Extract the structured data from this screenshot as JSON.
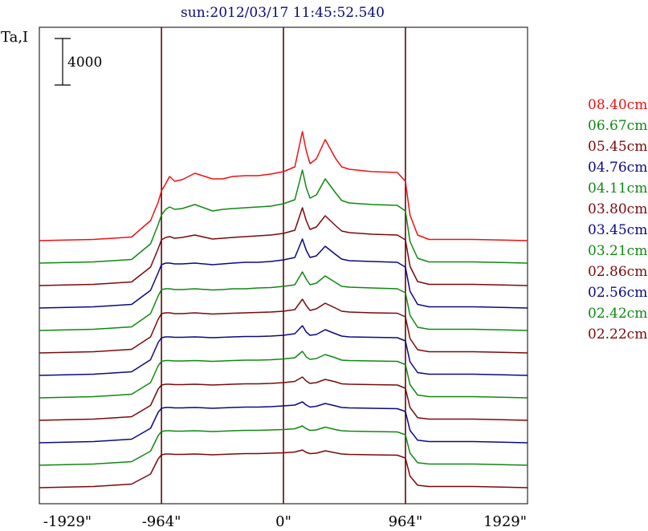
{
  "chart_data": {
    "type": "line",
    "title": "sun:2012/03/17 11:45:52.540",
    "ylabel": "Ta,I",
    "scale_bar_label": "4000",
    "scale_bar_value": 4000,
    "xlim": [
      -1929,
      1929
    ],
    "x_ticks": [
      -1929,
      -964,
      0,
      964,
      1929
    ],
    "x_tick_labels": [
      "-1929\"",
      "-964\"",
      "0\"",
      "964\"",
      "1929\""
    ],
    "vertical_lines_at": [
      -964,
      0,
      964
    ],
    "stacked_offset": 2800,
    "colors": {
      "red": "#ee1111",
      "green": "#118811",
      "darkred": "#7a0a0a",
      "navy": "#0a0a80"
    },
    "profile_x": [
      -1929,
      -1500,
      -1200,
      -1050,
      -990,
      -964,
      -930,
      -900,
      -860,
      -800,
      -700,
      -560,
      -480,
      -400,
      -300,
      -200,
      -100,
      0,
      90,
      150,
      180,
      210,
      260,
      330,
      410,
      460,
      520,
      700,
      900,
      964,
      1000,
      1060,
      1150,
      1500,
      1929
    ],
    "series": [
      {
        "label": "08.40cm",
        "color": "#ee1111",
        "values": [
          0,
          150,
          450,
          2500,
          4800,
          6200,
          7100,
          8000,
          7400,
          7600,
          8400,
          7700,
          7700,
          8000,
          8100,
          8100,
          8300,
          8600,
          9200,
          13600,
          11200,
          9600,
          10200,
          12600,
          10300,
          9200,
          8900,
          8600,
          8500,
          7400,
          3200,
          700,
          150,
          150,
          0
        ]
      },
      {
        "label": "06.67cm",
        "color": "#118811",
        "values": [
          0,
          150,
          450,
          2400,
          4800,
          6000,
          6700,
          7000,
          6700,
          6800,
          7300,
          6500,
          6700,
          6800,
          6900,
          7000,
          7100,
          7400,
          7900,
          11600,
          9400,
          8100,
          8500,
          10500,
          8800,
          7800,
          7500,
          7300,
          7200,
          6500,
          2700,
          600,
          150,
          150,
          0
        ]
      },
      {
        "label": "05.45cm",
        "color": "#7a0a0a",
        "values": [
          0,
          150,
          450,
          2300,
          4600,
          5700,
          6000,
          6100,
          5900,
          6000,
          6300,
          5800,
          5900,
          6000,
          6100,
          6200,
          6300,
          6500,
          6900,
          9700,
          8100,
          7000,
          7300,
          8700,
          7500,
          6800,
          6600,
          6400,
          6300,
          5700,
          2400,
          500,
          150,
          150,
          0
        ]
      },
      {
        "label": "04.76cm",
        "color": "#0a0a80",
        "values": [
          0,
          150,
          450,
          2200,
          4400,
          5400,
          5600,
          5600,
          5500,
          5500,
          5600,
          5400,
          5500,
          5600,
          5700,
          5700,
          5800,
          6000,
          6300,
          8600,
          7200,
          6300,
          6500,
          7700,
          6700,
          6100,
          5900,
          5800,
          5700,
          5100,
          2100,
          450,
          150,
          150,
          0
        ]
      },
      {
        "label": "04.11cm",
        "color": "#118811",
        "values": [
          0,
          150,
          450,
          2100,
          4300,
          5100,
          5200,
          5200,
          5100,
          5100,
          5200,
          5050,
          5100,
          5200,
          5200,
          5300,
          5350,
          5500,
          5700,
          7300,
          6400,
          5700,
          5900,
          6800,
          6000,
          5500,
          5400,
          5300,
          5200,
          4700,
          1900,
          400,
          150,
          150,
          0
        ]
      },
      {
        "label": "03.80cm",
        "color": "#7a0a0a",
        "values": [
          0,
          150,
          450,
          2000,
          4200,
          4900,
          5000,
          5000,
          4900,
          4900,
          5000,
          4850,
          4900,
          4950,
          5000,
          5050,
          5100,
          5200,
          5400,
          6700,
          5900,
          5300,
          5500,
          6200,
          5600,
          5200,
          5100,
          5000,
          4950,
          4500,
          1800,
          400,
          150,
          150,
          0
        ]
      },
      {
        "label": "03.45cm",
        "color": "#0a0a80",
        "values": [
          0,
          150,
          450,
          1950,
          4100,
          4700,
          4800,
          4800,
          4750,
          4750,
          4800,
          4700,
          4750,
          4800,
          4850,
          4850,
          4900,
          5000,
          5200,
          6200,
          5400,
          5000,
          5100,
          5700,
          5200,
          4900,
          4800,
          4750,
          4700,
          4300,
          1700,
          350,
          150,
          150,
          0
        ]
      },
      {
        "label": "03.21cm",
        "color": "#118811",
        "values": [
          0,
          150,
          450,
          1900,
          4000,
          4550,
          4650,
          4650,
          4600,
          4600,
          4650,
          4550,
          4600,
          4650,
          4700,
          4700,
          4750,
          4850,
          5000,
          5800,
          5100,
          4800,
          4900,
          5400,
          5000,
          4700,
          4650,
          4600,
          4550,
          4150,
          1650,
          350,
          150,
          150,
          0
        ]
      },
      {
        "label": "02.86cm",
        "color": "#7a0a0a",
        "values": [
          0,
          150,
          450,
          1850,
          3900,
          4400,
          4500,
          4500,
          4450,
          4450,
          4500,
          4400,
          4450,
          4500,
          4550,
          4550,
          4600,
          4700,
          4850,
          5400,
          4900,
          4600,
          4700,
          5100,
          4800,
          4550,
          4500,
          4450,
          4400,
          4000,
          1600,
          330,
          150,
          150,
          0
        ]
      },
      {
        "label": "02.56cm",
        "color": "#0a0a80",
        "values": [
          0,
          150,
          450,
          1800,
          3800,
          4300,
          4400,
          4400,
          4350,
          4350,
          4400,
          4300,
          4350,
          4400,
          4450,
          4450,
          4500,
          4600,
          4700,
          5100,
          4700,
          4450,
          4550,
          4900,
          4600,
          4400,
          4350,
          4300,
          4250,
          3900,
          1550,
          320,
          150,
          150,
          0
        ]
      },
      {
        "label": "02.42cm",
        "color": "#118811",
        "values": [
          0,
          150,
          450,
          1750,
          3700,
          4200,
          4300,
          4300,
          4250,
          4250,
          4300,
          4200,
          4250,
          4300,
          4350,
          4350,
          4400,
          4450,
          4550,
          4900,
          4550,
          4350,
          4400,
          4750,
          4450,
          4300,
          4250,
          4200,
          4150,
          3800,
          1500,
          310,
          150,
          150,
          0
        ]
      },
      {
        "label": "02.22cm",
        "color": "#7a0a0a",
        "values": [
          0,
          150,
          450,
          1700,
          3600,
          4100,
          4200,
          4200,
          4150,
          4150,
          4200,
          4100,
          4150,
          4200,
          4250,
          4250,
          4300,
          4350,
          4450,
          4700,
          4400,
          4250,
          4300,
          4600,
          4350,
          4200,
          4150,
          4100,
          4050,
          3700,
          1450,
          300,
          150,
          150,
          0
        ]
      }
    ]
  }
}
